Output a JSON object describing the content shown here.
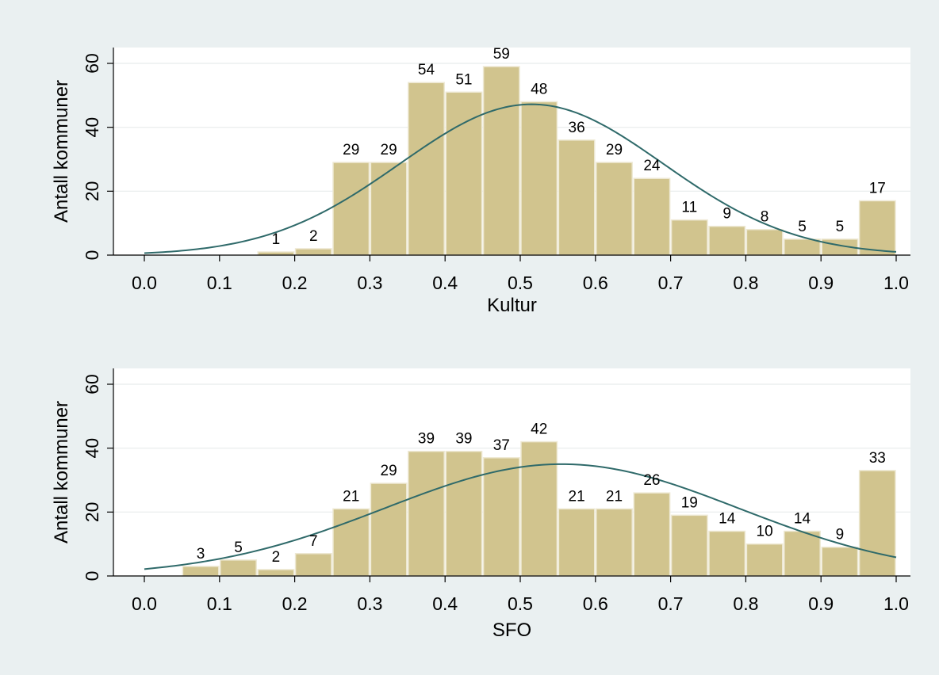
{
  "colors": {
    "background": "#eaf0f1",
    "plot_area": "#ffffff",
    "bar_fill": "#d1c48e",
    "bar_edge": "#eee9d4",
    "curve": "#2f6a6a",
    "grid": "#e8ecec"
  },
  "chart_data": [
    {
      "type": "bar",
      "subtype": "histogram-with-normal-curve",
      "xlabel": "Kultur",
      "ylabel": "Antall kommuner",
      "xlim": [
        0.0,
        1.0
      ],
      "ylim": [
        0,
        60
      ],
      "x_ticks": [
        "0.0",
        "0.1",
        "0.2",
        "0.3",
        "0.4",
        "0.5",
        "0.6",
        "0.7",
        "0.8",
        "0.9",
        "1.0"
      ],
      "y_ticks": [
        "0",
        "20",
        "40",
        "60"
      ],
      "grid": true,
      "bin_width": 0.05,
      "bins": [
        {
          "start": 0.15,
          "value": 1
        },
        {
          "start": 0.2,
          "value": 2
        },
        {
          "start": 0.25,
          "value": 29
        },
        {
          "start": 0.3,
          "value": 29
        },
        {
          "start": 0.35,
          "value": 54
        },
        {
          "start": 0.4,
          "value": 51
        },
        {
          "start": 0.45,
          "value": 59
        },
        {
          "start": 0.5,
          "value": 48
        },
        {
          "start": 0.55,
          "value": 36
        },
        {
          "start": 0.6,
          "value": 29
        },
        {
          "start": 0.65,
          "value": 24
        },
        {
          "start": 0.7,
          "value": 11
        },
        {
          "start": 0.75,
          "value": 9
        },
        {
          "start": 0.8,
          "value": 8
        },
        {
          "start": 0.85,
          "value": 5
        },
        {
          "start": 0.9,
          "value": 5
        },
        {
          "start": 0.95,
          "value": 17
        }
      ],
      "normal_curve": {
        "mean": 0.515,
        "sd": 0.175,
        "peak": 47.2
      }
    },
    {
      "type": "bar",
      "subtype": "histogram-with-normal-curve",
      "xlabel": "SFO",
      "ylabel": "Antall kommuner",
      "xlim": [
        0.0,
        1.0
      ],
      "ylim": [
        0,
        60
      ],
      "x_ticks": [
        "0.0",
        "0.1",
        "0.2",
        "0.3",
        "0.4",
        "0.5",
        "0.6",
        "0.7",
        "0.8",
        "0.9",
        "1.0"
      ],
      "y_ticks": [
        "0",
        "20",
        "40",
        "60"
      ],
      "grid": true,
      "bin_width": 0.05,
      "bins": [
        {
          "start": 0.05,
          "value": 3
        },
        {
          "start": 0.1,
          "value": 5
        },
        {
          "start": 0.15,
          "value": 2
        },
        {
          "start": 0.2,
          "value": 7
        },
        {
          "start": 0.25,
          "value": 21
        },
        {
          "start": 0.3,
          "value": 29
        },
        {
          "start": 0.35,
          "value": 39
        },
        {
          "start": 0.4,
          "value": 39
        },
        {
          "start": 0.45,
          "value": 37
        },
        {
          "start": 0.5,
          "value": 42
        },
        {
          "start": 0.55,
          "value": 21
        },
        {
          "start": 0.6,
          "value": 21
        },
        {
          "start": 0.65,
          "value": 26
        },
        {
          "start": 0.7,
          "value": 19
        },
        {
          "start": 0.75,
          "value": 14
        },
        {
          "start": 0.8,
          "value": 10
        },
        {
          "start": 0.85,
          "value": 14
        },
        {
          "start": 0.9,
          "value": 9
        },
        {
          "start": 0.95,
          "value": 33
        }
      ],
      "normal_curve": {
        "mean": 0.555,
        "sd": 0.235,
        "peak": 35.0
      }
    }
  ]
}
